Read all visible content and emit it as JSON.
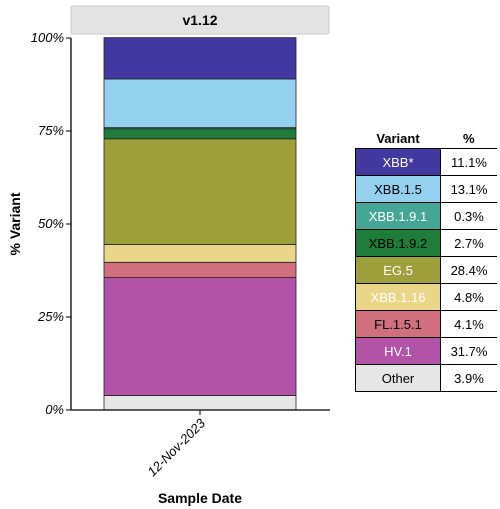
{
  "chart_data": {
    "type": "bar",
    "stacked": true,
    "panel_title": "v1.12",
    "xlabel": "Sample Date",
    "ylabel": "% Variant",
    "categories": [
      "12-Nov-2023"
    ],
    "ylim": [
      0,
      100
    ],
    "y_ticks": [
      "0%",
      "25%",
      "50%",
      "75%",
      "100%"
    ],
    "y_tick_values": [
      0,
      25,
      50,
      75,
      100
    ],
    "series": [
      {
        "name": "Other",
        "values": [
          3.9
        ],
        "color": "#e6e6e6"
      },
      {
        "name": "HV.1",
        "values": [
          31.7
        ],
        "color": "#b253a8"
      },
      {
        "name": "FL.1.5.1",
        "values": [
          4.1
        ],
        "color": "#d06f7e"
      },
      {
        "name": "XBB.1.16",
        "values": [
          4.8
        ],
        "color": "#ead688"
      },
      {
        "name": "EG.5",
        "values": [
          28.4
        ],
        "color": "#9ea03c"
      },
      {
        "name": "XBB.1.9.2",
        "values": [
          2.7
        ],
        "color": "#1f7c3b"
      },
      {
        "name": "XBB.1.9.1",
        "values": [
          0.3
        ],
        "color": "#46a696"
      },
      {
        "name": "XBB.1.5",
        "values": [
          13.1
        ],
        "color": "#93d1ef"
      },
      {
        "name": "XBB*",
        "values": [
          11.1
        ],
        "color": "#43389f"
      }
    ]
  },
  "legend_table": {
    "header": {
      "variant": "Variant",
      "percent": "%"
    },
    "rows": [
      {
        "variant": "XBB*",
        "percent": "11.1%",
        "bg": "#43389f",
        "fg": "#ffffff"
      },
      {
        "variant": "XBB.1.5",
        "percent": "13.1%",
        "bg": "#93d1ef",
        "fg": "#000000"
      },
      {
        "variant": "XBB.1.9.1",
        "percent": "0.3%",
        "bg": "#46a696",
        "fg": "#ffffff"
      },
      {
        "variant": "XBB.1.9.2",
        "percent": "2.7%",
        "bg": "#1f7c3b",
        "fg": "#000000"
      },
      {
        "variant": "EG.5",
        "percent": "28.4%",
        "bg": "#9ea03c",
        "fg": "#ffffff"
      },
      {
        "variant": "XBB.1.16",
        "percent": "4.8%",
        "bg": "#ead688",
        "fg": "#ffffff"
      },
      {
        "variant": "FL.1.5.1",
        "percent": "4.1%",
        "bg": "#d06f7e",
        "fg": "#000000"
      },
      {
        "variant": "HV.1",
        "percent": "31.7%",
        "bg": "#b253a8",
        "fg": "#ffffff"
      },
      {
        "variant": "Other",
        "percent": "3.9%",
        "bg": "#e6e6e6",
        "fg": "#000000"
      }
    ]
  }
}
